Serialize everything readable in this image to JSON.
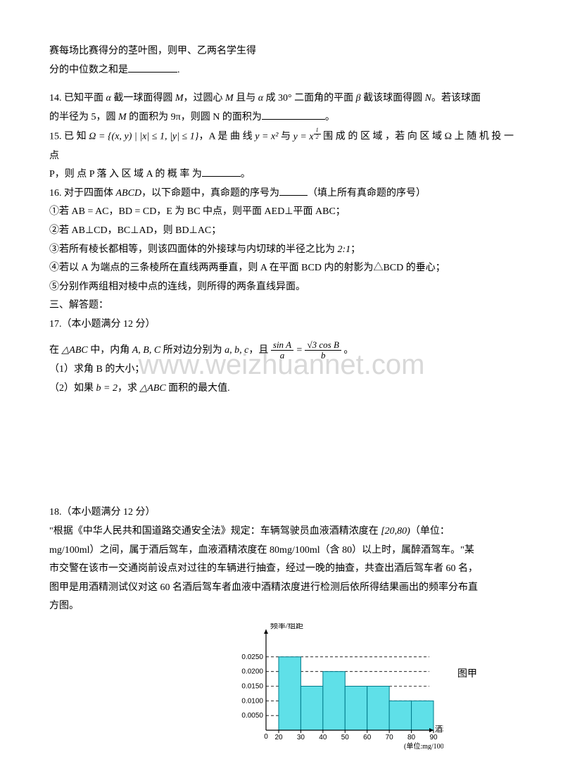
{
  "top": {
    "line1": "赛每场比赛得分的茎叶图，则甲、乙两名学生得",
    "line2a": "分的中位数之和是",
    "line2b": "."
  },
  "q14": {
    "a": "14.  已知平面 ",
    "b": " 截一球面得圆 ",
    "c": "，过圆心 ",
    "d": " 且与 ",
    "e": " 成 30° 二面角的平面 ",
    "f": " 截该球面得圆 ",
    "g": "。若该球面",
    "h": "的半径为 5，圆 ",
    "i": " 的面积为 9π，则圆 N 的面积为",
    "j": "。"
  },
  "q15": {
    "a": "15.  已 知 ",
    "set": "Ω = {(x, y) | |x| ≤ 1, |y| ≤ 1}",
    "b": "，A 是 曲 线 ",
    "c1": "y = x²",
    "c2": " 与 ",
    "c3a": "y = x",
    "d": " 围 成 的 区 域 ，若 向 区 域 Ω 上 随 机 投 一 点",
    "e": "P，则 点 P 落 入 区 域 A 的 概 率 为",
    "f": "。"
  },
  "q16": {
    "a": "16.  对于四面体 ",
    "abcd": "ABCD",
    "b": "，以下命题中，真命题的序号为",
    "c": "（填上所有真命题的序号）",
    "i1": "①若 AB = AC，BD = CD，E 为 BC 中点，则平面 AED⊥平面 ABC；",
    "i2": "②若 AB⊥CD，BC⊥AD，则 BD⊥AC；",
    "i3a": "③若所有棱长都相等，则该四面体的外接球与内切球的半径之比为 ",
    "i3b": "2:1",
    "i3c": "；",
    "i4": "④若以 A 为端点的三条棱所在直线两两垂直，则 A 在平面 BCD 内的射影为△BCD 的垂心；",
    "i5": "⑤分别作两组相对棱中点的连线，则所得的两条直线异面。"
  },
  "sec3": "三、解答题：",
  "q17": {
    "title": "17.（本小题满分 12 分）",
    "a": "在 ",
    "abc1": "△ABC",
    "b": " 中，内角 ",
    "abc2": "A, B, C",
    "c": " 所对边分别为 ",
    "abc3": "a, b, c",
    "d": "，且  ",
    "eq_num1": "sin A",
    "eq_den1": "a",
    "eq_eq": " = ",
    "eq_num2": "√3 cos B",
    "eq_den2": "b",
    "e": "。",
    "p1": "（1）求角 B 的大小；",
    "p2a": "（2）如果 ",
    "p2b": "b = 2",
    "p2c": "，求 ",
    "p2d": "△ABC",
    "p2e": " 面积的最大值."
  },
  "q18": {
    "title": "18.（本小题满分 12 分）",
    "a": "\"根据《中华人民共和国道路交通安全法》规定：车辆驾驶员血液酒精浓度在 ",
    "int": "[20,80)",
    "b": "（单位：",
    "c": "mg/100ml）之间，属于酒后驾车，血液酒精浓度在 80mg/100ml（含 80）以上时，属醉酒驾车。\"某",
    "d": "市交警在该市一交通岗前设点对过往的车辆进行抽查，经过一晚的抽查，共查出酒后驾车者 60 名，",
    "e": "图甲是用酒精测试仪对这 60 名酒后驾车者血液中酒精浓度进行检测后依所得结果画出的频率分布直",
    "f": "方图。"
  },
  "chart": {
    "ylabel": "频率/组距",
    "xlabel": "酒精含量",
    "xunit": "(单位:mg/100ml)",
    "caption": "图甲",
    "ylim": [
      0,
      0.03
    ],
    "yticks": [
      "0.0050",
      "0.0100",
      "0.0150",
      "0.0200",
      "0.0250"
    ],
    "xticks": [
      "0",
      "20",
      "30",
      "40",
      "50",
      "60",
      "70",
      "80",
      "90"
    ],
    "firstBinStart": 20,
    "binWidth": 10,
    "bars": [
      {
        "from": 20,
        "to": 30,
        "h": 0.025
      },
      {
        "from": 30,
        "to": 40,
        "h": 0.015
      },
      {
        "from": 40,
        "to": 50,
        "h": 0.02
      },
      {
        "from": 50,
        "to": 60,
        "h": 0.015
      },
      {
        "from": 60,
        "to": 70,
        "h": 0.015
      },
      {
        "from": 70,
        "to": 80,
        "h": 0.01
      },
      {
        "from": 80,
        "to": 90,
        "h": 0.01
      }
    ],
    "colors": {
      "barFill": "#5fe0e8",
      "barStroke": "#007a8a",
      "axis": "#000000",
      "dash": "#000000",
      "text": "#000000",
      "bg": "#ffffff"
    },
    "font": {
      "tick": 10,
      "axisLabel": 11
    }
  }
}
